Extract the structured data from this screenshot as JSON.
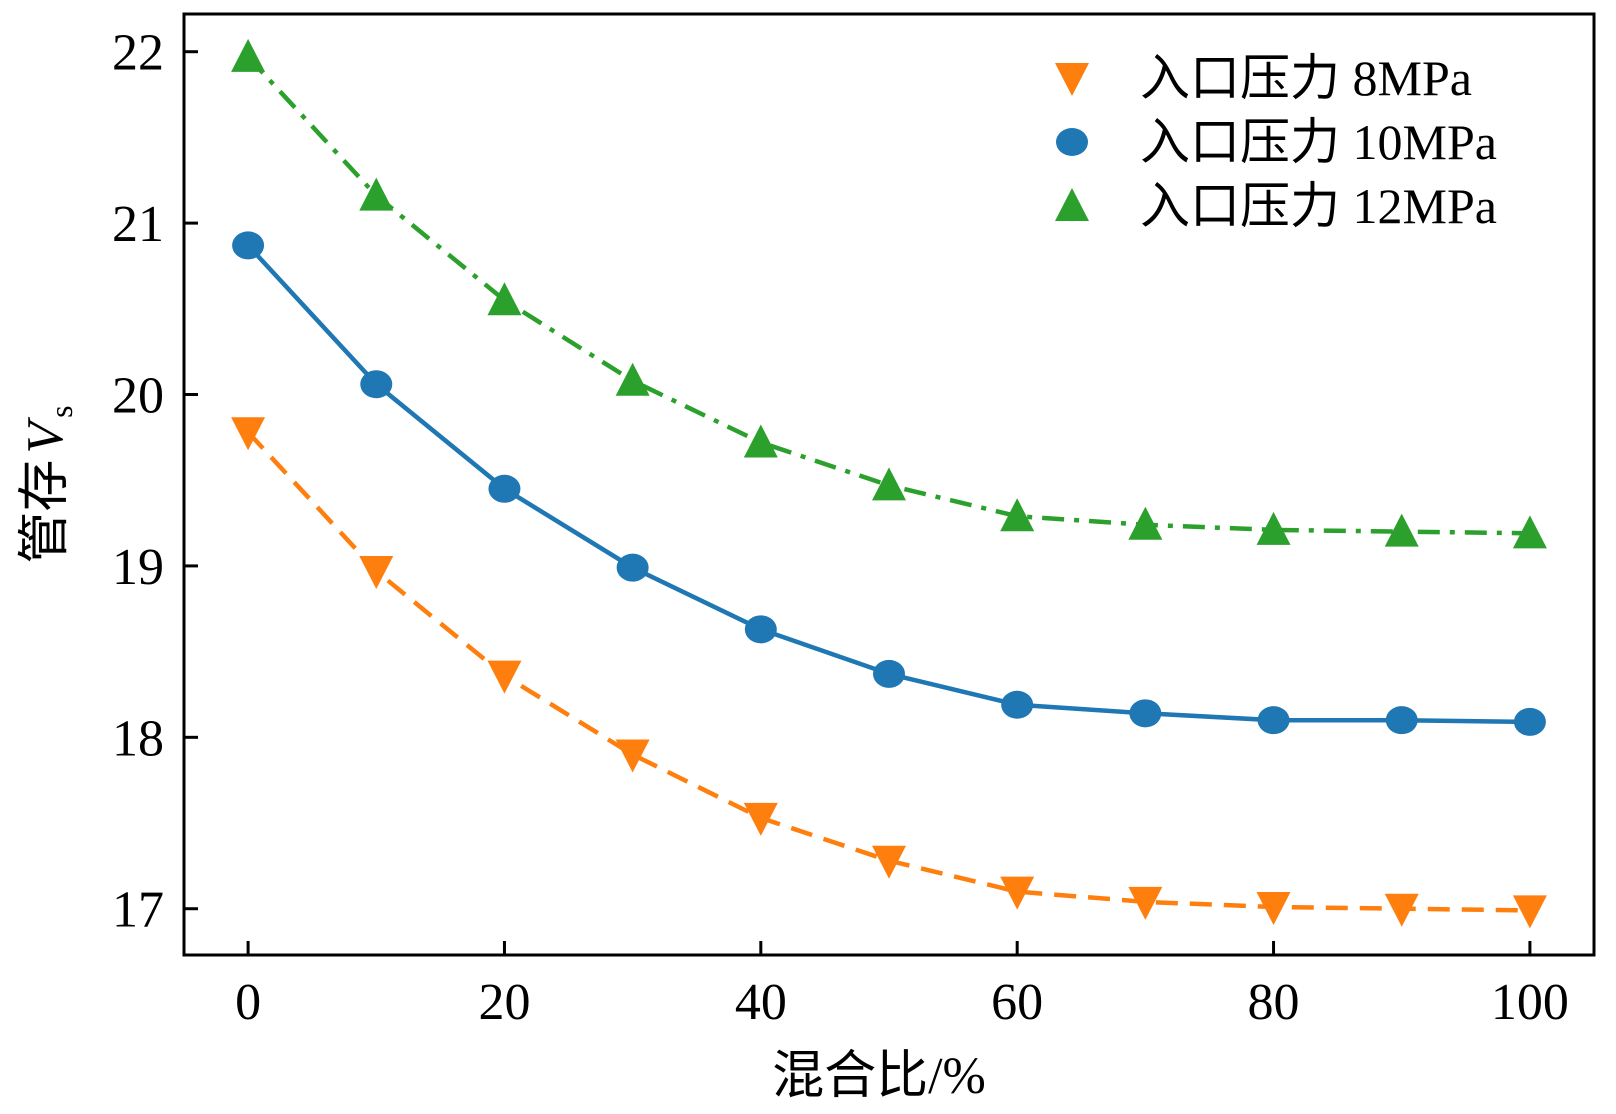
{
  "chart_data": {
    "type": "line",
    "xlabel": "混合比/%",
    "ylabel_main": "管存",
    "ylabel_var": "V",
    "ylabel_sub": "s",
    "xlim": [
      -5,
      105
    ],
    "ylim": [
      16.73,
      22.22
    ],
    "x_ticks": [
      0,
      20,
      40,
      60,
      80,
      100
    ],
    "x_tick_labels": [
      "0",
      "20",
      "40",
      "60",
      "80",
      "100"
    ],
    "y_ticks": [
      17,
      18,
      19,
      20,
      21,
      22
    ],
    "y_tick_labels": [
      "17",
      "18",
      "19",
      "20",
      "21",
      "22"
    ],
    "x": [
      0,
      10,
      20,
      30,
      40,
      50,
      60,
      70,
      80,
      90,
      100
    ],
    "legend_position": "top-right",
    "grid": false,
    "series": [
      {
        "name": "入口压力 8MPa",
        "color": "#ff7f0e",
        "marker": "triangle-down",
        "line_style": "dashed",
        "values": [
          19.78,
          18.97,
          18.36,
          17.9,
          17.53,
          17.28,
          17.1,
          17.04,
          17.01,
          17.0,
          16.99
        ]
      },
      {
        "name": "入口压力 10MPa",
        "color": "#1f77b4",
        "marker": "circle",
        "line_style": "solid",
        "values": [
          20.87,
          20.06,
          19.45,
          18.99,
          18.63,
          18.37,
          18.19,
          18.14,
          18.1,
          18.1,
          18.09
        ]
      },
      {
        "name": "入口压力 12MPa",
        "color": "#2ca02c",
        "marker": "triangle-up",
        "line_style": "dashdot",
        "values": [
          21.97,
          21.16,
          20.55,
          20.08,
          19.72,
          19.47,
          19.29,
          19.24,
          19.21,
          19.2,
          19.19
        ]
      }
    ]
  }
}
